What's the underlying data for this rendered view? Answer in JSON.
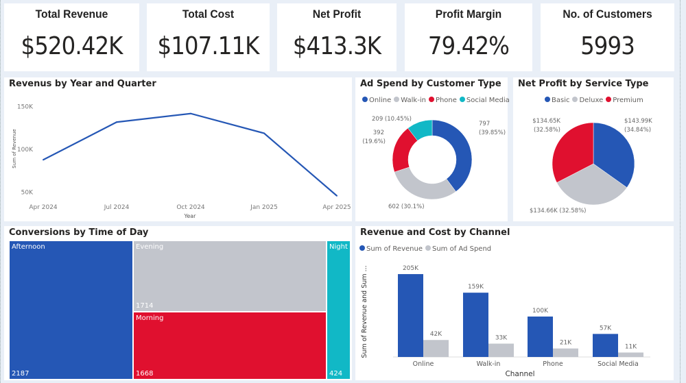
{
  "kpis": [
    {
      "title": "Total Revenue",
      "value": "$520.42K"
    },
    {
      "title": "Total Cost",
      "value": "$107.11K"
    },
    {
      "title": "Net Profit",
      "value": "$413.3K"
    },
    {
      "title": "Profit Margin",
      "value": "79.42%"
    },
    {
      "title": "No. of Customers",
      "value": "5993"
    }
  ],
  "colors": {
    "blue": "#2557b5",
    "gray": "#c2c5cc",
    "red": "#e0102f",
    "teal": "#11b8c6"
  },
  "chart_data": [
    {
      "type": "line",
      "title": "Revenus by Year and Quarter",
      "xlabel": "Year",
      "ylabel": "Sum of Revenue",
      "x": [
        "Apr 2024",
        "Jul 2024",
        "Oct 2024",
        "Jan 2025",
        "Apr 2025"
      ],
      "values": [
        87,
        131,
        141,
        118,
        45
      ],
      "yticks": [
        "150K",
        "100K",
        "50K"
      ],
      "ytick_values": [
        150,
        100,
        50
      ]
    },
    {
      "type": "pie",
      "variant": "donut",
      "title": "Ad Spend by Customer Type",
      "categories": [
        "Online",
        "Walk-in",
        "Phone",
        "Social Media"
      ],
      "values": [
        797,
        602,
        392,
        209
      ],
      "percents": [
        39.85,
        30.1,
        19.6,
        10.45
      ],
      "labels": [
        "797",
        "602 (30.1%)",
        "392",
        "209 (10.45%)"
      ],
      "labels2": [
        "(39.85%)",
        "",
        "(19.6%)",
        ""
      ]
    },
    {
      "type": "pie",
      "title": "Net Profit by Service Type",
      "categories": [
        "Basic",
        "Deluxe",
        "Premium"
      ],
      "values": [
        143.99,
        134.66,
        134.65
      ],
      "percents": [
        34.84,
        32.58,
        32.58
      ],
      "labels": [
        "$143.99K",
        "$134.66K (32.58%)",
        "$134.65K"
      ],
      "labels2": [
        "(34.84%)",
        "",
        "(32.58%)"
      ]
    },
    {
      "type": "treemap",
      "title": "Conversions by Time of Day",
      "categories": [
        "Afternoon",
        "Evening",
        "Morning",
        "Night"
      ],
      "values": [
        2187,
        1714,
        1668,
        424
      ]
    },
    {
      "type": "bar",
      "title": "Revenue and Cost by Channel",
      "xlabel": "Channel",
      "ylabel": "Sum of Revenue and Sum ...",
      "categories": [
        "Online",
        "Walk-in",
        "Phone",
        "Social Media"
      ],
      "series": [
        {
          "name": "Sum of Revenue",
          "values": [
            205,
            159,
            100,
            57
          ],
          "labels": [
            "205K",
            "159K",
            "100K",
            "57K"
          ]
        },
        {
          "name": "Sum of Ad Spend",
          "values": [
            42,
            33,
            21,
            11
          ],
          "labels": [
            "42K",
            "33K",
            "21K",
            "11K"
          ]
        }
      ]
    }
  ]
}
